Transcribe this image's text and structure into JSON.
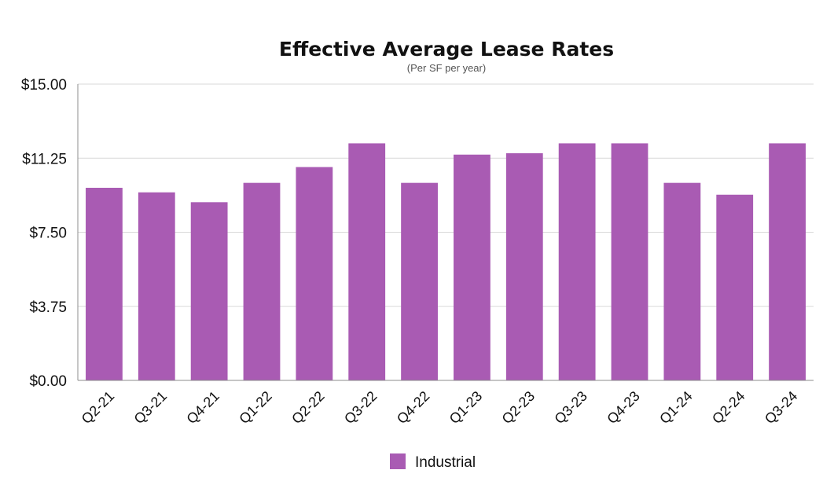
{
  "chart_data": {
    "type": "bar",
    "title": "Effective Average Lease Rates",
    "subtitle": "(Per SF per year)",
    "categories": [
      "Q2-21",
      "Q3-21",
      "Q4-21",
      "Q1-22",
      "Q2-22",
      "Q3-22",
      "Q4-22",
      "Q1-23",
      "Q2-23",
      "Q3-23",
      "Q4-23",
      "Q1-24",
      "Q2-24",
      "Q3-24"
    ],
    "series": [
      {
        "name": "Industrial",
        "color": "#a95bb3",
        "values": [
          9.75,
          9.52,
          9.02,
          10.0,
          10.8,
          12.0,
          10.0,
          11.43,
          11.5,
          12.0,
          12.0,
          10.0,
          9.4,
          12.0
        ]
      }
    ],
    "ylim": [
      0,
      15
    ],
    "yticks": [
      0,
      3.75,
      7.5,
      11.25,
      15
    ],
    "ytick_labels": [
      "$0.00",
      "$3.75",
      "$7.50",
      "$11.25",
      "$15.00"
    ],
    "xlabel": "",
    "ylabel": "",
    "grid": true,
    "legend": "bottom-center"
  }
}
